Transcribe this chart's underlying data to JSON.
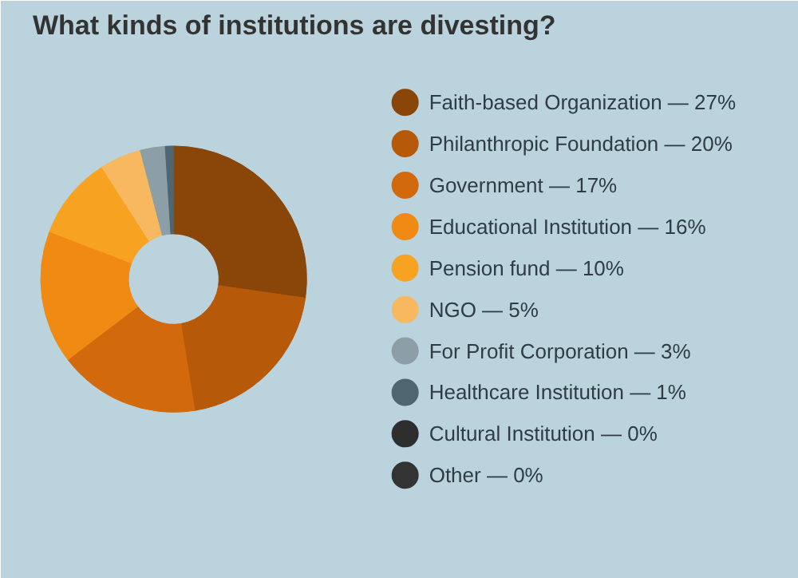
{
  "chart_data": {
    "type": "donut",
    "title": "What kinds of institutions are divesting?",
    "categories": [
      "Faith-based Organization",
      "Philanthropic Foundation",
      "Government",
      "Educational Institution",
      "Pension fund",
      "NGO",
      "For Profit Corporation",
      "Healthcare Institution",
      "Cultural Institution",
      "Other"
    ],
    "values": [
      27,
      20,
      17,
      16,
      10,
      5,
      3,
      1,
      0,
      0
    ],
    "value_labels": [
      "— 27%",
      "— 20%",
      "— 17%",
      "— 16%",
      "— 10%",
      "— 5%",
      "— 3%",
      "— 1%",
      "— 0%",
      "— 0%"
    ],
    "colors": [
      "#8a4508",
      "#b65a0a",
      "#d2690c",
      "#f08a12",
      "#f7a321",
      "#f8b860",
      "#8c9ea6",
      "#4f6570",
      "#2e2e2e",
      "#333333"
    ],
    "legend": "right"
  }
}
